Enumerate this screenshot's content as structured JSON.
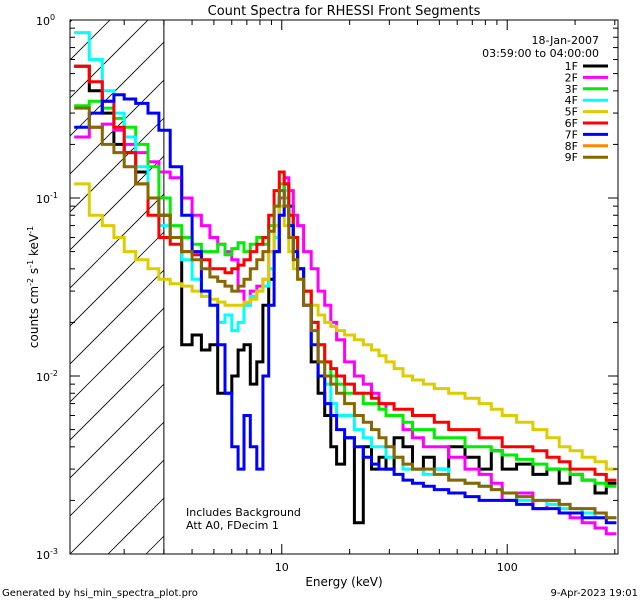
{
  "chart_data": {
    "type": "line",
    "title": "Count Spectra for RHESSI Front Segments",
    "xlabel": "Energy (keV)",
    "ylabel_main": "counts cm",
    "ylabel_sup1": "-2",
    "ylabel_mid": " s",
    "ylabel_sup2": "-1",
    "ylabel_mid2": " keV",
    "ylabel_sup3": "-1",
    "xscale": "log",
    "yscale": "log",
    "xlim": [
      1.15,
      310
    ],
    "ylim": [
      0.001,
      1.0
    ],
    "x_ticks": [
      {
        "v": 10,
        "label": "10"
      },
      {
        "v": 100,
        "label": "100"
      }
    ],
    "y_ticks": [
      {
        "v": 1,
        "base": "10",
        "exp": "0"
      },
      {
        "v": 0.1,
        "base": "10",
        "exp": "-1"
      },
      {
        "v": 0.01,
        "base": "10",
        "exp": "-2"
      },
      {
        "v": 0.001,
        "base": "10",
        "exp": "-3"
      }
    ],
    "hatch_upper_kev": 3.0,
    "date_line": "18-Jan-2007",
    "time_line": "03:59:00 to 04:00:00",
    "annotation_line1": "Includes Background",
    "annotation_line2": "Att A0, FDecim 1",
    "energies": [
      1.3,
      1.5,
      1.7,
      1.9,
      2.1,
      2.4,
      2.7,
      3.0,
      3.4,
      3.8,
      4.2,
      4.6,
      5.0,
      5.4,
      5.8,
      6.2,
      6.6,
      7.0,
      7.5,
      8.0,
      8.5,
      9.0,
      9.5,
      10.0,
      10.5,
      11.0,
      11.5,
      12.0,
      13,
      14,
      15,
      16,
      17,
      18,
      20,
      22,
      24,
      26,
      28,
      30,
      33,
      36,
      40,
      45,
      50,
      60,
      70,
      80,
      90,
      100,
      120,
      140,
      160,
      180,
      200,
      230,
      260,
      290
    ],
    "series": [
      {
        "name": "1F",
        "color": "#000000",
        "values": [
          0.55,
          0.4,
          0.3,
          0.2,
          0.18,
          0.14,
          0.1,
          0.08,
          0.06,
          0.015,
          0.017,
          0.014,
          0.015,
          0.008,
          0.008,
          0.01,
          0.014,
          0.015,
          0.009,
          0.012,
          0.025,
          0.035,
          0.05,
          0.1,
          0.12,
          0.09,
          0.06,
          0.04,
          0.03,
          0.012,
          0.008,
          0.006,
          0.004,
          0.0032,
          0.0045,
          0.0015,
          0.004,
          0.003,
          0.0035,
          0.003,
          0.0045,
          0.004,
          0.003,
          0.0035,
          0.003,
          0.004,
          0.0035,
          0.003,
          0.0038,
          0.003,
          0.0032,
          0.0028,
          0.003,
          0.0025,
          0.0028,
          0.0026,
          0.0022,
          0.0025
        ]
      },
      {
        "name": "2F",
        "color": "#ff00ff",
        "values": [
          0.22,
          0.25,
          0.26,
          0.24,
          0.2,
          0.18,
          0.16,
          0.14,
          0.13,
          0.1,
          0.08,
          0.07,
          0.06,
          0.055,
          0.05,
          0.045,
          0.03,
          0.025,
          0.03,
          0.032,
          0.035,
          0.05,
          0.07,
          0.1,
          0.13,
          0.11,
          0.08,
          0.07,
          0.05,
          0.04,
          0.03,
          0.025,
          0.02,
          0.016,
          0.012,
          0.01,
          0.009,
          0.008,
          0.007,
          0.006,
          0.006,
          0.005,
          0.0045,
          0.004,
          0.004,
          0.0035,
          0.003,
          0.0028,
          0.0025,
          0.002,
          0.0022,
          0.0018,
          0.002,
          0.0017,
          0.0016,
          0.0015,
          0.0014,
          0.0013
        ]
      },
      {
        "name": "3F",
        "color": "#00ee00",
        "values": [
          0.33,
          0.35,
          0.32,
          0.28,
          0.25,
          0.2,
          0.15,
          0.1,
          0.07,
          0.06,
          0.055,
          0.05,
          0.05,
          0.055,
          0.048,
          0.052,
          0.056,
          0.05,
          0.055,
          0.06,
          0.055,
          0.07,
          0.09,
          0.12,
          0.1,
          0.08,
          0.05,
          0.04,
          0.03,
          0.02,
          0.015,
          0.012,
          0.01,
          0.009,
          0.008,
          0.008,
          0.007,
          0.007,
          0.0065,
          0.006,
          0.006,
          0.0055,
          0.005,
          0.005,
          0.0045,
          0.0045,
          0.004,
          0.004,
          0.0038,
          0.0036,
          0.0034,
          0.0032,
          0.003,
          0.003,
          0.0028,
          0.0026,
          0.0025,
          0.0024
        ]
      },
      {
        "name": "4F",
        "color": "#00ffff",
        "values": [
          0.85,
          0.6,
          0.4,
          0.3,
          0.22,
          0.15,
          0.1,
          0.07,
          0.06,
          0.045,
          0.035,
          0.03,
          0.025,
          0.02,
          0.022,
          0.018,
          0.02,
          0.025,
          0.028,
          0.03,
          0.032,
          0.04,
          0.06,
          0.09,
          0.11,
          0.08,
          0.06,
          0.04,
          0.03,
          0.02,
          0.012,
          0.009,
          0.007,
          0.006,
          0.006,
          0.005,
          0.0045,
          0.004,
          0.004,
          0.0035,
          0.0035,
          0.003,
          0.003,
          0.0028,
          0.003,
          0.0026,
          0.0025,
          0.0024,
          0.0023,
          0.0022,
          0.002,
          0.002,
          0.0019,
          0.0018,
          0.0018,
          0.0017,
          0.0016,
          0.0016
        ]
      },
      {
        "name": "5F",
        "color": "#ddcc00",
        "values": [
          0.12,
          0.08,
          0.07,
          0.06,
          0.05,
          0.045,
          0.04,
          0.035,
          0.033,
          0.032,
          0.03,
          0.028,
          0.027,
          0.026,
          0.025,
          0.025,
          0.025,
          0.026,
          0.027,
          0.03,
          0.035,
          0.05,
          0.07,
          0.09,
          0.07,
          0.05,
          0.04,
          0.035,
          0.03,
          0.025,
          0.022,
          0.02,
          0.019,
          0.018,
          0.017,
          0.016,
          0.015,
          0.014,
          0.013,
          0.012,
          0.011,
          0.01,
          0.0095,
          0.009,
          0.0085,
          0.008,
          0.0075,
          0.007,
          0.0065,
          0.006,
          0.0055,
          0.005,
          0.0045,
          0.004,
          0.0038,
          0.0035,
          0.0033,
          0.003
        ]
      },
      {
        "name": "6F",
        "color": "#ff0000",
        "values": [
          0.55,
          0.45,
          0.35,
          0.25,
          0.18,
          0.12,
          0.08,
          0.06,
          0.055,
          0.05,
          0.048,
          0.045,
          0.04,
          0.04,
          0.038,
          0.04,
          0.042,
          0.045,
          0.05,
          0.055,
          0.06,
          0.08,
          0.11,
          0.14,
          0.12,
          0.08,
          0.06,
          0.04,
          0.03,
          0.02,
          0.015,
          0.012,
          0.011,
          0.01,
          0.009,
          0.008,
          0.008,
          0.0075,
          0.007,
          0.007,
          0.0065,
          0.0065,
          0.006,
          0.006,
          0.0055,
          0.005,
          0.005,
          0.0045,
          0.0045,
          0.004,
          0.004,
          0.0038,
          0.0035,
          0.0033,
          0.003,
          0.003,
          0.0028,
          0.0026
        ]
      },
      {
        "name": "7F",
        "color": "#0000ff",
        "values": [
          0.25,
          0.3,
          0.35,
          0.38,
          0.36,
          0.34,
          0.3,
          0.24,
          0.15,
          0.08,
          0.05,
          0.03,
          0.025,
          0.015,
          0.008,
          0.004,
          0.003,
          0.006,
          0.004,
          0.003,
          0.01,
          0.025,
          0.05,
          0.08,
          0.09,
          0.07,
          0.05,
          0.04,
          0.025,
          0.015,
          0.01,
          0.007,
          0.006,
          0.005,
          0.0045,
          0.004,
          0.0035,
          0.0032,
          0.003,
          0.003,
          0.0028,
          0.0026,
          0.0025,
          0.0024,
          0.0023,
          0.0022,
          0.0021,
          0.002,
          0.002,
          0.002,
          0.0019,
          0.0018,
          0.0018,
          0.0017,
          0.0017,
          0.0016,
          0.0016,
          0.0015
        ]
      },
      {
        "name": "8F",
        "color": "#ff8800",
        "values": []
      },
      {
        "name": "9F",
        "color": "#886600",
        "values": [
          0.32,
          0.25,
          0.2,
          0.18,
          0.15,
          0.12,
          0.1,
          0.08,
          0.06,
          0.05,
          0.045,
          0.04,
          0.036,
          0.034,
          0.032,
          0.03,
          0.032,
          0.035,
          0.04,
          0.045,
          0.05,
          0.065,
          0.09,
          0.11,
          0.09,
          0.06,
          0.045,
          0.035,
          0.025,
          0.018,
          0.012,
          0.01,
          0.009,
          0.008,
          0.007,
          0.006,
          0.0055,
          0.005,
          0.0045,
          0.004,
          0.0035,
          0.0032,
          0.003,
          0.003,
          0.0028,
          0.0026,
          0.0025,
          0.0024,
          0.0023,
          0.0022,
          0.0021,
          0.002,
          0.002,
          0.0019,
          0.0018,
          0.0018,
          0.0017,
          0.0016
        ]
      }
    ]
  },
  "footer": {
    "left": "Generated by hsi_min_spectra_plot.pro",
    "right": "9-Apr-2023 19:01"
  }
}
